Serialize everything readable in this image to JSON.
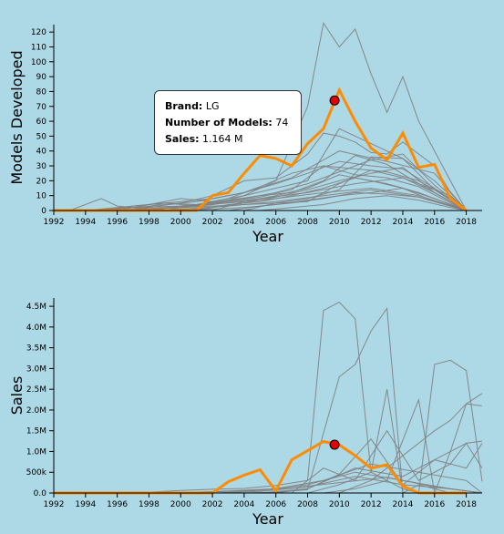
{
  "colors": {
    "background": "#add8e6",
    "highlight": "#ff8c00",
    "context": "#808080",
    "marker": "#e00000"
  },
  "tooltip": {
    "brand_label": "Brand:",
    "brand_value": "LG",
    "models_label": "Number of Models:",
    "models_value": "74",
    "sales_label": "Sales:",
    "sales_value": "1.164 M"
  },
  "chart_data": [
    {
      "type": "line",
      "xlabel": "Year",
      "ylabel": "Models Developed",
      "xlim": [
        1992,
        2019
      ],
      "ylim": [
        0,
        125
      ],
      "x_ticks": [
        "1992",
        "1994",
        "1996",
        "1998",
        "2000",
        "2002",
        "2004",
        "2006",
        "2008",
        "2010",
        "2012",
        "2014",
        "2016",
        "2018"
      ],
      "y_ticks": [
        "0",
        "10",
        "20",
        "30",
        "40",
        "50",
        "60",
        "70",
        "80",
        "90",
        "100",
        "110",
        "120"
      ],
      "highlight": {
        "x": [
          1992,
          1993,
          1994,
          1995,
          1996,
          1997,
          1998,
          1999,
          2000,
          2001,
          2002,
          2003,
          2004,
          2005,
          2006,
          2007,
          2008,
          2009,
          2010,
          2011,
          2012,
          2013,
          2014,
          2015,
          2016,
          2017,
          2018
        ],
        "y": [
          0,
          0,
          0,
          0,
          0,
          0,
          0,
          0,
          0,
          0,
          10,
          12,
          25,
          37,
          35,
          30,
          45,
          55,
          81,
          60,
          42,
          34,
          52,
          29,
          31,
          8,
          0
        ]
      },
      "marker": {
        "x": 2009.7,
        "y": 74
      },
      "context_series": [
        {
          "x": [
            1993,
            1995,
            1996,
            1998,
            2000,
            2002,
            2004,
            2006,
            2008,
            2009,
            2010,
            2011,
            2012,
            2013,
            2014,
            2015,
            2017,
            2018
          ],
          "y": [
            0,
            8,
            3,
            1,
            2,
            4,
            10,
            20,
            70,
            126,
            110,
            122,
            92,
            66,
            90,
            60,
            20,
            0
          ]
        },
        {
          "x": [
            1996,
            1998,
            2000,
            2002,
            2004,
            2006,
            2008,
            2009,
            2010,
            2011,
            2012,
            2013,
            2014,
            2015,
            2016,
            2017,
            2018
          ],
          "y": [
            0,
            2,
            5,
            10,
            20,
            22,
            38,
            52,
            50,
            46,
            39,
            38,
            46,
            38,
            30,
            12,
            0
          ]
        },
        {
          "x": [
            1994,
            1996,
            1998,
            2000,
            2002,
            2004,
            2006,
            2008,
            2010,
            2012,
            2014,
            2016,
            2018
          ],
          "y": [
            0,
            2,
            4,
            6,
            8,
            12,
            18,
            25,
            33,
            30,
            28,
            15,
            0
          ]
        },
        {
          "x": [
            1995,
            1997,
            1999,
            2001,
            2003,
            2005,
            2007,
            2009,
            2011,
            2013,
            2015,
            2017,
            2018
          ],
          "y": [
            0,
            3,
            5,
            4,
            7,
            10,
            12,
            20,
            37,
            31,
            18,
            6,
            0
          ]
        },
        {
          "x": [
            1996,
            1998,
            2000,
            2002,
            2004,
            2006,
            2008,
            2010,
            2012,
            2014,
            2016,
            2018
          ],
          "y": [
            0,
            4,
            8,
            6,
            10,
            15,
            20,
            55,
            45,
            35,
            20,
            0
          ]
        },
        {
          "x": [
            1998,
            2000,
            2002,
            2004,
            2006,
            2008,
            2010,
            2012,
            2014,
            2016,
            2018
          ],
          "y": [
            0,
            3,
            5,
            8,
            12,
            18,
            26,
            34,
            38,
            17,
            0
          ]
        },
        {
          "x": [
            1997,
            1999,
            2001,
            2003,
            2005,
            2007,
            2009,
            2011,
            2013,
            2015,
            2017,
            2018
          ],
          "y": [
            0,
            5,
            3,
            6,
            9,
            14,
            30,
            24,
            22,
            16,
            5,
            0
          ]
        },
        {
          "x": [
            2000,
            2002,
            2004,
            2006,
            2008,
            2010,
            2012,
            2014,
            2016,
            2018
          ],
          "y": [
            0,
            2,
            5,
            9,
            14,
            20,
            25,
            29,
            12,
            0
          ]
        },
        {
          "x": [
            1996,
            1999,
            2002,
            2005,
            2008,
            2011,
            2014,
            2017,
            2018
          ],
          "y": [
            0,
            2,
            4,
            8,
            12,
            18,
            22,
            10,
            0
          ]
        },
        {
          "x": [
            1999,
            2001,
            2003,
            2005,
            2007,
            2009,
            2011,
            2013,
            2015,
            2017,
            2018
          ],
          "y": [
            0,
            4,
            8,
            16,
            25,
            30,
            28,
            26,
            20,
            8,
            0
          ]
        },
        {
          "x": [
            1995,
            1998,
            2001,
            2004,
            2007,
            2010,
            2013,
            2016,
            2018
          ],
          "y": [
            0,
            3,
            6,
            12,
            22,
            40,
            33,
            25,
            0
          ]
        },
        {
          "x": [
            2001,
            2003,
            2005,
            2007,
            2009,
            2011,
            2013,
            2015,
            2017,
            2018
          ],
          "y": [
            0,
            4,
            6,
            10,
            15,
            22,
            18,
            12,
            4,
            0
          ]
        },
        {
          "x": [
            1994,
            1997,
            2000,
            2003,
            2006,
            2009,
            2012,
            2015,
            2018
          ],
          "y": [
            0,
            2,
            3,
            5,
            8,
            12,
            15,
            10,
            0
          ]
        },
        {
          "x": [
            2002,
            2004,
            2006,
            2008,
            2010,
            2012,
            2014,
            2016,
            2018
          ],
          "y": [
            0,
            6,
            10,
            15,
            24,
            20,
            15,
            8,
            0
          ]
        },
        {
          "x": [
            1998,
            2000,
            2003,
            2006,
            2009,
            2012,
            2015,
            2018
          ],
          "y": [
            0,
            1,
            3,
            6,
            10,
            14,
            9,
            0
          ]
        },
        {
          "x": [
            2003,
            2005,
            2007,
            2009,
            2011,
            2013,
            2015,
            2017,
            2018
          ],
          "y": [
            0,
            3,
            5,
            8,
            12,
            11,
            9,
            3,
            0
          ]
        },
        {
          "x": [
            1996,
            2000,
            2004,
            2008,
            2010,
            2012,
            2014,
            2016,
            2018
          ],
          "y": [
            0,
            2,
            4,
            6,
            18,
            27,
            22,
            12,
            0
          ]
        },
        {
          "x": [
            2004,
            2006,
            2008,
            2010,
            2012,
            2014,
            2016,
            2018
          ],
          "y": [
            0,
            5,
            8,
            14,
            36,
            35,
            14,
            0
          ]
        },
        {
          "x": [
            2000,
            2002,
            2004,
            2006,
            2008,
            2010,
            2012,
            2014,
            2016,
            2018
          ],
          "y": [
            0,
            1,
            2,
            4,
            7,
            10,
            12,
            15,
            6,
            0
          ]
        },
        {
          "x": [
            2005,
            2007,
            2009,
            2011,
            2013,
            2015,
            2017,
            2018
          ],
          "y": [
            0,
            2,
            4,
            8,
            10,
            7,
            2,
            0
          ]
        }
      ]
    },
    {
      "type": "line",
      "xlabel": "Year",
      "ylabel": "Sales",
      "xlim": [
        1992,
        2019
      ],
      "ylim": [
        0,
        4700000
      ],
      "x_ticks": [
        "1992",
        "1994",
        "1996",
        "1998",
        "2000",
        "2002",
        "2004",
        "2006",
        "2008",
        "2010",
        "2012",
        "2014",
        "2016",
        "2018"
      ],
      "y_tick_values": [
        0,
        500000,
        1000000,
        1500000,
        2000000,
        2500000,
        3000000,
        3500000,
        4000000,
        4500000
      ],
      "y_ticks": [
        "0.0",
        "500k",
        "1.0M",
        "1.5M",
        "2.0M",
        "2.5M",
        "3.0M",
        "3.5M",
        "4.0M",
        "4.5M"
      ],
      "highlight": {
        "x": [
          1992,
          1993,
          1994,
          1995,
          1996,
          1997,
          1998,
          1999,
          2000,
          2001,
          2002,
          2003,
          2004,
          2005,
          2006,
          2007,
          2008,
          2009,
          2010,
          2011,
          2012,
          2013,
          2014,
          2015,
          2016,
          2017,
          2018
        ],
        "y": [
          0,
          0,
          0,
          0,
          0,
          0,
          0,
          0,
          0,
          0,
          0,
          270000,
          430000,
          560000,
          50000,
          800000,
          1020000,
          1240000,
          1160000,
          900000,
          600000,
          680000,
          170000,
          0,
          0,
          0,
          0
        ]
      },
      "marker": {
        "x": 2009.7,
        "y": 1164000
      },
      "context_series": [
        {
          "x": [
            1996,
            1998,
            2000,
            2002,
            2004,
            2006,
            2008,
            2009,
            2010,
            2011,
            2012,
            2013,
            2014,
            2015,
            2016,
            2017,
            2018
          ],
          "y": [
            0,
            20000,
            60000,
            90000,
            110000,
            180000,
            300000,
            4400000,
            4600000,
            4200000,
            500000,
            300000,
            100000,
            0,
            0,
            0,
            0
          ]
        },
        {
          "x": [
            2004,
            2006,
            2008,
            2010,
            2011,
            2012,
            2013,
            2014,
            2015,
            2016,
            2017,
            2018
          ],
          "y": [
            0,
            20000,
            80000,
            2800000,
            3100000,
            3900000,
            4450000,
            0,
            200000,
            100000,
            0,
            0
          ]
        },
        {
          "x": [
            2008,
            2010,
            2012,
            2013,
            2014,
            2015,
            2016,
            2017,
            2018,
            2019
          ],
          "y": [
            0,
            200000,
            500000,
            2500000,
            0,
            0,
            3100000,
            3200000,
            2950000,
            280000
          ]
        },
        {
          "x": [
            2009,
            2011,
            2013,
            2015,
            2016,
            2017,
            2018,
            2019
          ],
          "y": [
            0,
            100000,
            300000,
            2250000,
            0,
            1000000,
            2150000,
            2100000
          ]
        },
        {
          "x": [
            2010,
            2012,
            2014,
            2016,
            2017,
            2018,
            2019
          ],
          "y": [
            0,
            300000,
            900000,
            1500000,
            1750000,
            2150000,
            2400000
          ]
        },
        {
          "x": [
            2007,
            2009,
            2011,
            2013,
            2015,
            2017,
            2018,
            2019
          ],
          "y": [
            0,
            600000,
            300000,
            1500000,
            300000,
            700000,
            1200000,
            1250000
          ]
        },
        {
          "x": [
            2006,
            2008,
            2010,
            2012,
            2014,
            2016,
            2018,
            2019
          ],
          "y": [
            0,
            100000,
            450000,
            1300000,
            200000,
            800000,
            600000,
            1200000
          ]
        },
        {
          "x": [
            1996,
            1999,
            2002,
            2005,
            2008,
            2011,
            2014,
            2017,
            2019
          ],
          "y": [
            0,
            10000,
            30000,
            60000,
            200000,
            500000,
            300000,
            100000,
            0
          ]
        },
        {
          "x": [
            2000,
            2003,
            2006,
            2009,
            2012,
            2015,
            2018,
            2019
          ],
          "y": [
            0,
            50000,
            100000,
            300000,
            700000,
            500000,
            300000,
            0
          ]
        },
        {
          "x": [
            2002,
            2005,
            2008,
            2011,
            2014,
            2017,
            2019
          ],
          "y": [
            0,
            40000,
            150000,
            400000,
            200000,
            100000,
            0
          ]
        },
        {
          "x": [
            1998,
            2001,
            2004,
            2007,
            2010,
            2013,
            2016,
            2019
          ],
          "y": [
            0,
            20000,
            50000,
            120000,
            250000,
            380000,
            150000,
            0
          ]
        },
        {
          "x": [
            2005,
            2008,
            2011,
            2014,
            2016,
            2018,
            2019
          ],
          "y": [
            0,
            100000,
            600000,
            400000,
            800000,
            1200000,
            600000
          ]
        }
      ]
    }
  ]
}
